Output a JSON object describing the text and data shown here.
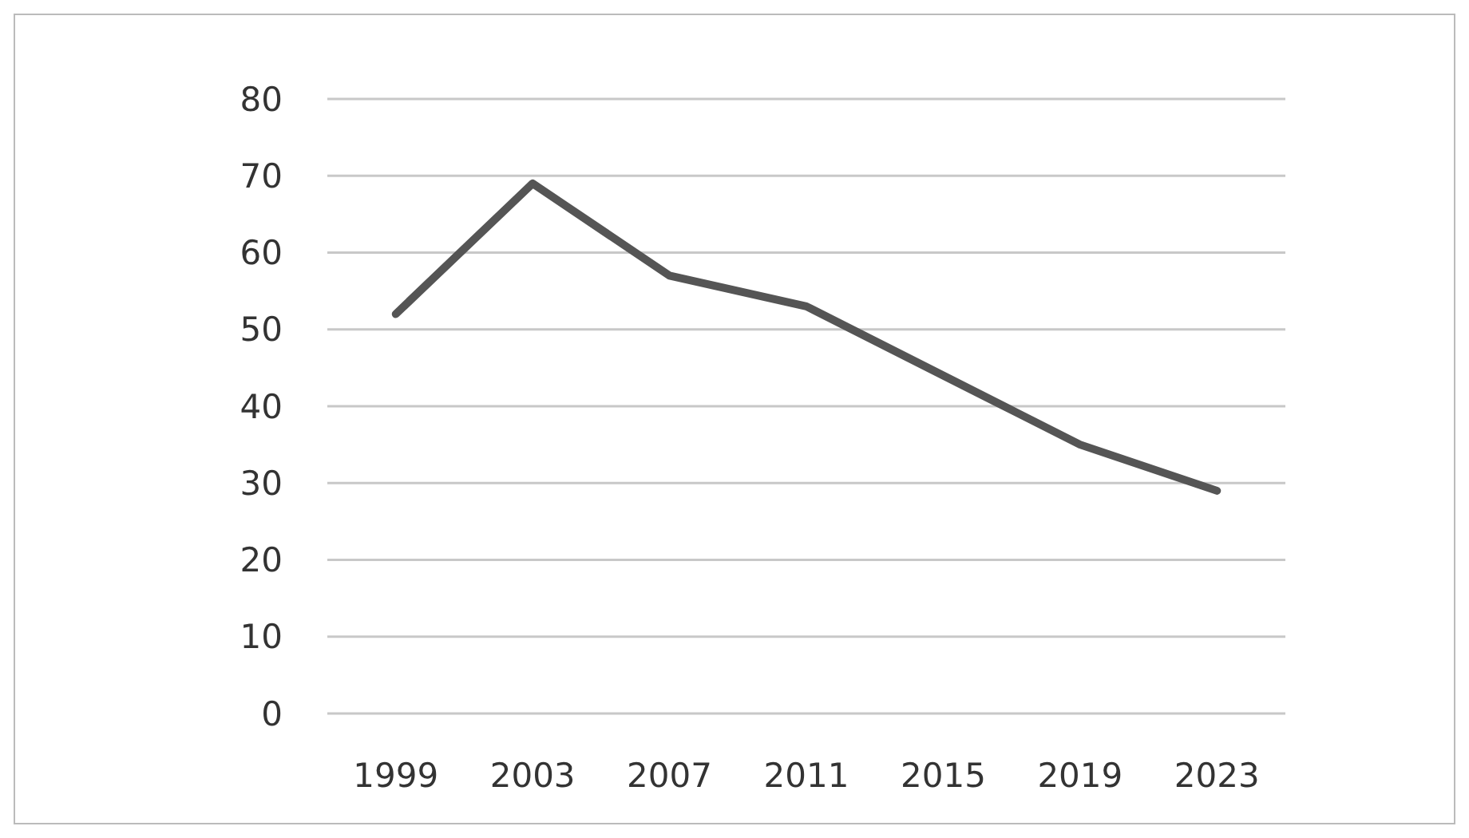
{
  "chart_data": {
    "type": "line",
    "categories": [
      "1999",
      "2003",
      "2007",
      "2011",
      "2015",
      "2019",
      "2023"
    ],
    "series": [
      {
        "color": "#555555",
        "values": [
          52,
          69,
          57,
          53,
          44,
          35,
          29
        ]
      }
    ],
    "ylim": [
      0,
      80
    ],
    "yticks": [
      0,
      10,
      20,
      30,
      40,
      50,
      60,
      70,
      80
    ],
    "grid": "y",
    "marker": "none",
    "line_style": "solid"
  }
}
